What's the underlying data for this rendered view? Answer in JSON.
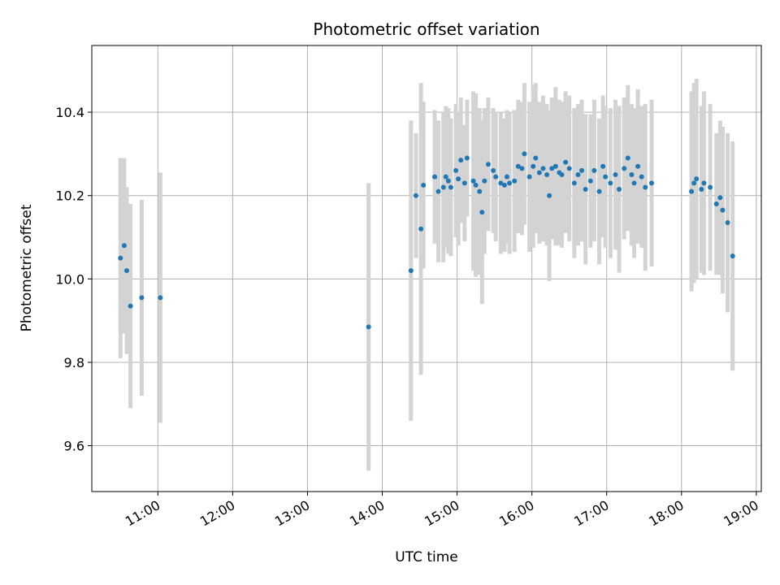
{
  "chart_data": {
    "type": "scatter",
    "title": "Photometric offset variation",
    "xlabel": "UTC time",
    "ylabel": "Photometric offset",
    "xlim": [
      "10:07",
      "19:04"
    ],
    "ylim": [
      9.49,
      10.56
    ],
    "x_ticks": [
      "11:00",
      "12:00",
      "13:00",
      "14:00",
      "15:00",
      "16:00",
      "17:00",
      "18:00",
      "19:00"
    ],
    "y_ticks": [
      "9.6",
      "9.8",
      "10.0",
      "10.2",
      "10.4"
    ],
    "grid": true,
    "colors": {
      "points": "#1f77b4",
      "error_bars": "#d3d3d3",
      "grid": "#b0b0b0"
    },
    "series": [
      {
        "x": [
          "10:30",
          "10:33",
          "10:35",
          "10:38",
          "10:47",
          "11:02",
          "13:49",
          "14:23",
          "14:27",
          "14:31",
          "14:33",
          "14:42",
          "14:45",
          "14:49",
          "14:51",
          "14:53",
          "14:55",
          "14:59",
          "15:01",
          "15:03",
          "15:06",
          "15:08",
          "15:13",
          "15:15",
          "15:18",
          "15:20",
          "15:22",
          "15:25",
          "15:29",
          "15:31",
          "15:35",
          "15:38",
          "15:40",
          "15:42",
          "15:46",
          "15:49",
          "15:52",
          "15:54",
          "15:58",
          "16:01",
          "16:03",
          "16:06",
          "16:09",
          "16:12",
          "16:14",
          "16:16",
          "16:19",
          "16:22",
          "16:24",
          "16:27",
          "16:30",
          "16:34",
          "16:37",
          "16:40",
          "16:43",
          "16:47",
          "16:50",
          "16:54",
          "16:57",
          "16:59",
          "17:03",
          "17:07",
          "17:10",
          "17:14",
          "17:17",
          "17:20",
          "17:22",
          "17:25",
          "17:28",
          "17:31",
          "17:36",
          "18:08",
          "18:10",
          "18:12",
          "18:16",
          "18:18",
          "18:23",
          "18:28",
          "18:31",
          "18:33",
          "18:37",
          "18:41"
        ],
        "y": [
          10.05,
          10.08,
          10.02,
          9.935,
          9.955,
          9.955,
          9.885,
          10.02,
          10.2,
          10.12,
          10.225,
          10.245,
          10.21,
          10.22,
          10.245,
          10.235,
          10.22,
          10.26,
          10.24,
          10.285,
          10.23,
          10.29,
          10.235,
          10.225,
          10.21,
          10.16,
          10.235,
          10.275,
          10.26,
          10.245,
          10.23,
          10.225,
          10.245,
          10.23,
          10.235,
          10.27,
          10.265,
          10.3,
          10.245,
          10.27,
          10.29,
          10.255,
          10.265,
          10.25,
          10.2,
          10.265,
          10.27,
          10.255,
          10.25,
          10.28,
          10.265,
          10.23,
          10.25,
          10.26,
          10.215,
          10.235,
          10.26,
          10.21,
          10.27,
          10.245,
          10.23,
          10.25,
          10.215,
          10.265,
          10.29,
          10.25,
          10.23,
          10.27,
          10.245,
          10.22,
          10.23,
          10.21,
          10.23,
          10.24,
          10.215,
          10.23,
          10.22,
          10.18,
          10.195,
          10.165,
          10.135,
          10.055
        ],
        "err": [
          0.24,
          0.21,
          0.2,
          0.245,
          0.235,
          0.3,
          0.345,
          0.36,
          0.15,
          0.35,
          0.2,
          0.16,
          0.17,
          0.18,
          0.17,
          0.175,
          0.165,
          0.16,
          0.16,
          0.15,
          0.14,
          0.14,
          0.215,
          0.22,
          0.2,
          0.22,
          0.175,
          0.16,
          0.15,
          0.155,
          0.17,
          0.16,
          0.16,
          0.17,
          0.17,
          0.16,
          0.16,
          0.17,
          0.18,
          0.195,
          0.18,
          0.17,
          0.175,
          0.17,
          0.205,
          0.17,
          0.19,
          0.175,
          0.175,
          0.17,
          0.175,
          0.18,
          0.17,
          0.17,
          0.18,
          0.16,
          0.17,
          0.175,
          0.17,
          0.17,
          0.18,
          0.18,
          0.2,
          0.17,
          0.175,
          0.17,
          0.18,
          0.185,
          0.17,
          0.2,
          0.2,
          0.24,
          0.24,
          0.24,
          0.2,
          0.22,
          0.2,
          0.17,
          0.185,
          0.2,
          0.215,
          0.275
        ]
      }
    ]
  }
}
